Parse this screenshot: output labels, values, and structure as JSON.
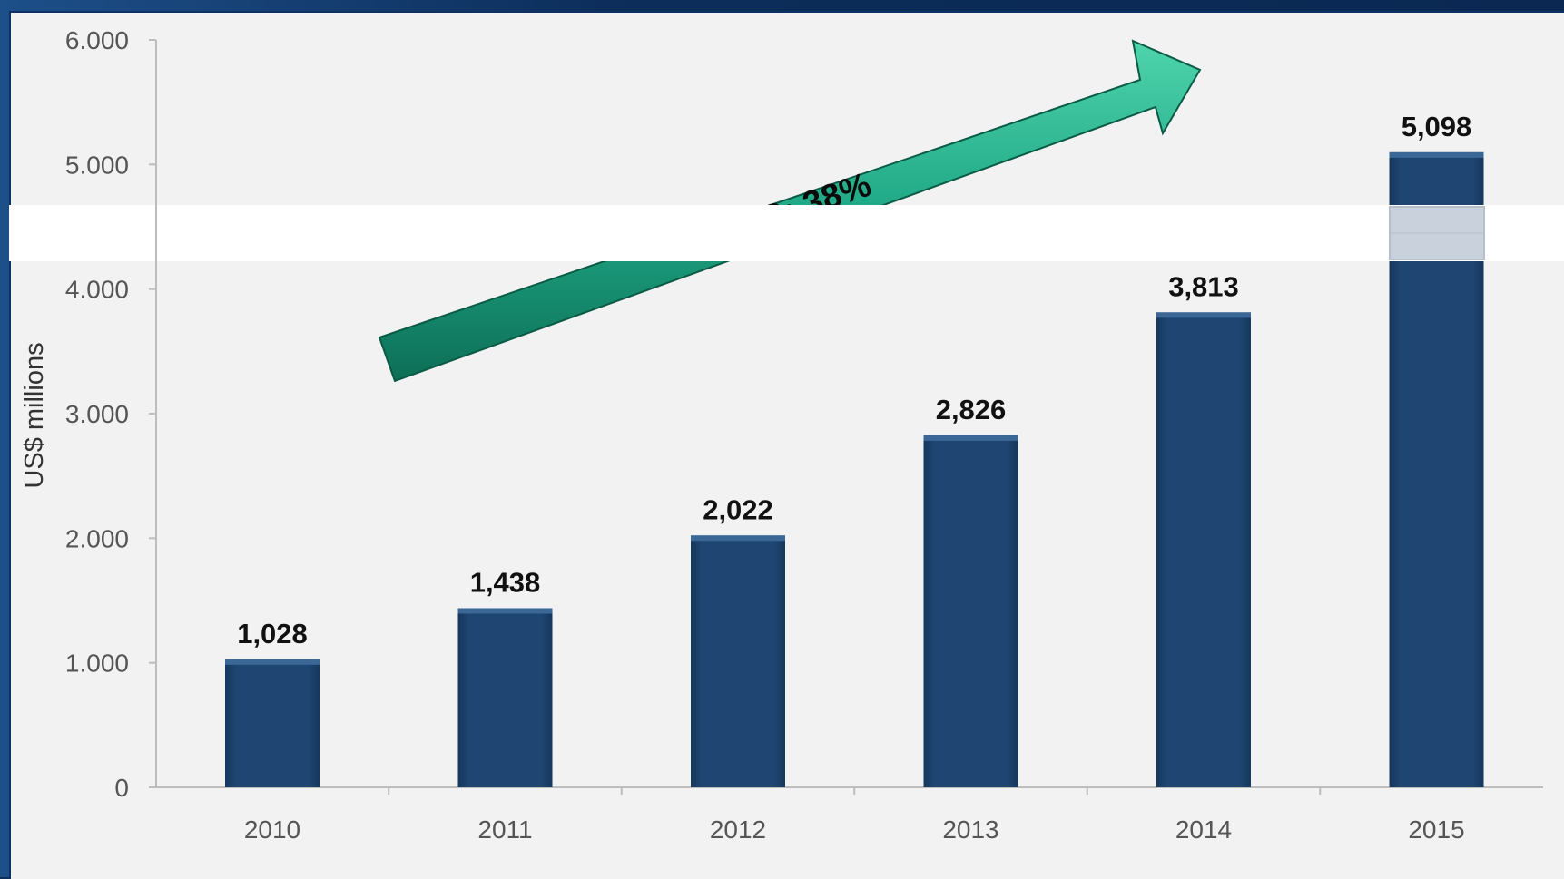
{
  "chart_data": {
    "type": "bar",
    "categories": [
      "2010",
      "2011",
      "2012",
      "2013",
      "2014",
      "2015"
    ],
    "values": [
      1028,
      1438,
      2022,
      2826,
      3813,
      5098
    ],
    "value_labels": [
      "1,028",
      "1,438",
      "2,022",
      "2,826",
      "3,813",
      "5,098"
    ],
    "ylabel": "US$ millions",
    "ylim": [
      0,
      6000
    ],
    "yticks": [
      0,
      1000,
      2000,
      3000,
      4000,
      5000,
      6000
    ],
    "ytick_labels": [
      "0",
      "1.000",
      "2.000",
      "3.000",
      "4.000",
      "5.000",
      "6.000"
    ],
    "annotation": "CAGR: 38%",
    "bar_color": "#1f4672",
    "arrow_color": "#1fa886",
    "grid": false
  }
}
